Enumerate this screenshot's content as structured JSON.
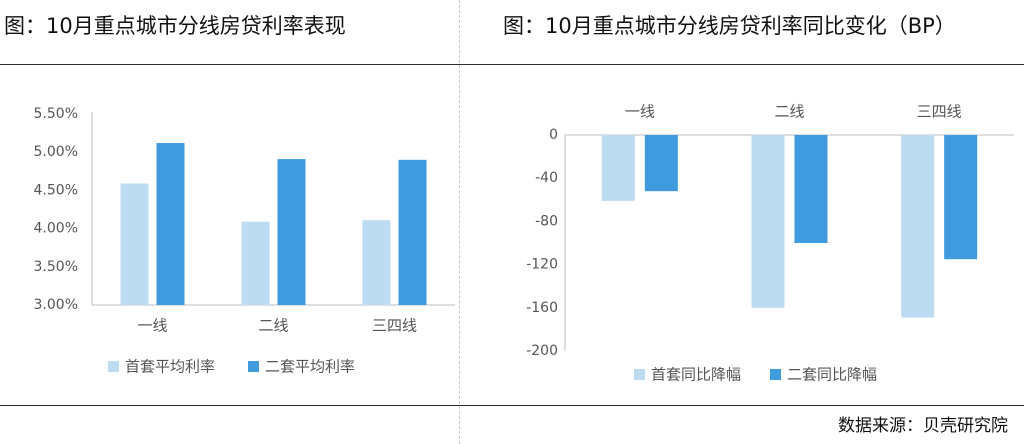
{
  "colors": {
    "first_home": "#bcdcf2",
    "second_home": "#3f9ade",
    "axis": "#bfbfbf",
    "text": "#555555"
  },
  "chart_data": [
    {
      "type": "bar",
      "title": "图：10月重点城市分线房贷利率表现",
      "categories": [
        "一线",
        "二线",
        "三四线"
      ],
      "series": [
        {
          "name": "首套平均利率",
          "values": [
            4.59,
            4.09,
            4.11
          ]
        },
        {
          "name": "二套平均利率",
          "values": [
            5.12,
            4.91,
            4.9
          ]
        }
      ],
      "yticks": [
        "5.50%",
        "5.00%",
        "4.50%",
        "4.00%",
        "3.50%",
        "3.00%"
      ],
      "ylim": [
        3.0,
        5.5
      ],
      "legend": "bottom"
    },
    {
      "type": "bar",
      "title": "图：10月重点城市分线房贷利率同比变化（BP）",
      "categories": [
        "一线",
        "二线",
        "三四线"
      ],
      "series": [
        {
          "name": "首套同比降幅",
          "values": [
            -61,
            -160,
            -169
          ]
        },
        {
          "name": "二套同比降幅",
          "values": [
            -52,
            -100,
            -115
          ]
        }
      ],
      "yticks": [
        "0",
        "-40",
        "-80",
        "-120",
        "-160",
        "-200"
      ],
      "ylim": [
        -200,
        0
      ],
      "legend": "bottom"
    }
  ],
  "source": "数据来源：贝壳研究院"
}
